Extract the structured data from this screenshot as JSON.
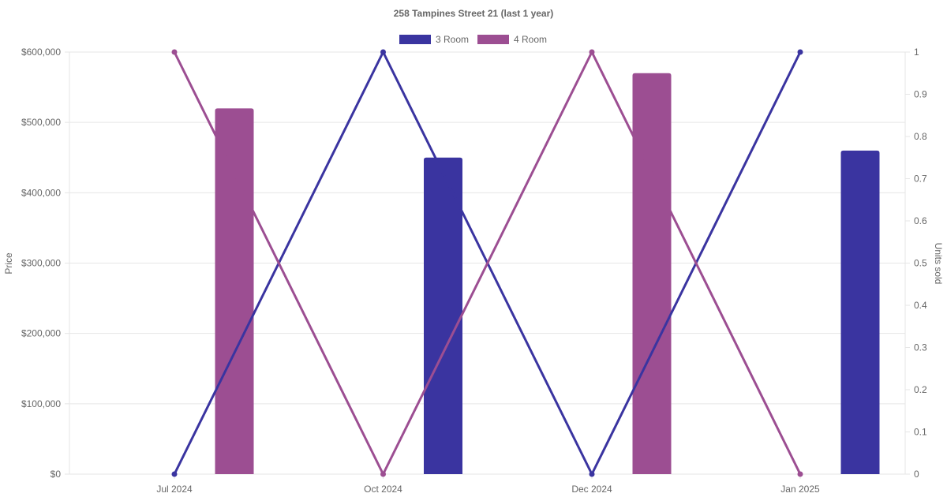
{
  "chart_data": {
    "type": "bar",
    "title": "258 Tampines Street 21 (last 1 year)",
    "legend_position": "top-center",
    "grid": true,
    "x_categories": [
      "Jul 2024",
      "Oct 2024",
      "Dec 2024",
      "Jan 2025"
    ],
    "y_left": {
      "label": "Price",
      "range": [
        0,
        600000
      ],
      "ticks": [
        "$0",
        "$100,000",
        "$200,000",
        "$300,000",
        "$400,000",
        "$500,000",
        "$600,000"
      ]
    },
    "y_right": {
      "label": "Units sold",
      "range": [
        0,
        1
      ],
      "ticks": [
        "0",
        "0.1",
        "0.2",
        "0.3",
        "0.4",
        "0.5",
        "0.6",
        "0.7",
        "0.8",
        "0.9",
        "1"
      ]
    },
    "series": [
      {
        "name": "3 Room",
        "color": "#3a34a0",
        "price": [
          null,
          450000,
          null,
          460000
        ],
        "units_sold": [
          0,
          1,
          0,
          1
        ]
      },
      {
        "name": "4 Room",
        "color": "#9c4e92",
        "price": [
          520000,
          null,
          570000,
          null
        ],
        "units_sold": [
          1,
          0,
          1,
          0
        ]
      }
    ]
  }
}
